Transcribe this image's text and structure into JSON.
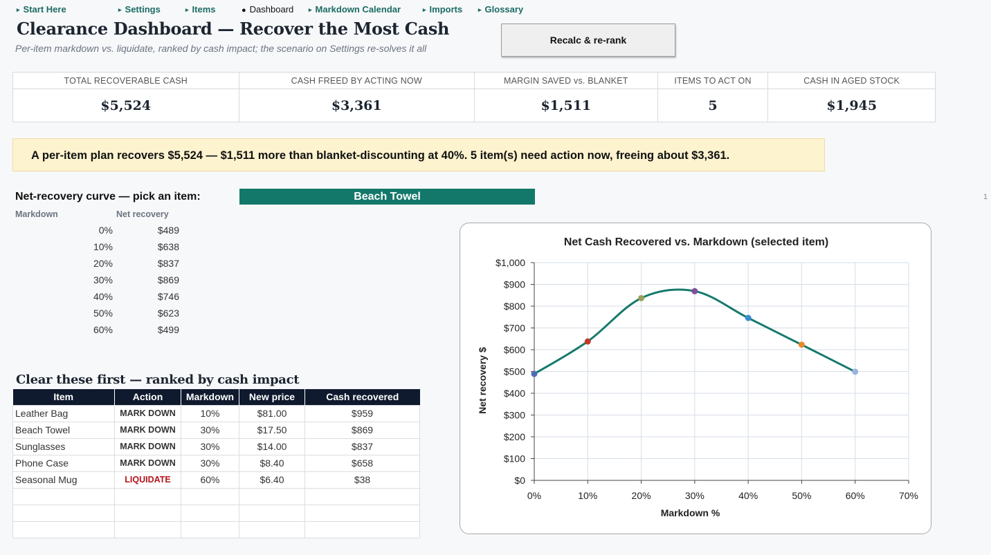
{
  "nav": [
    {
      "label": "Start Here",
      "active": false
    },
    {
      "label": "Settings",
      "active": false
    },
    {
      "label": "Items",
      "active": false
    },
    {
      "label": "Dashboard",
      "active": true
    },
    {
      "label": "Markdown Calendar",
      "active": false
    },
    {
      "label": "Imports",
      "active": false
    },
    {
      "label": "Glossary",
      "active": false
    }
  ],
  "header": {
    "title": "Clearance Dashboard — Recover the Most Cash",
    "subtitle": "Per-item markdown vs. liquidate, ranked by cash impact; the scenario on Settings re-solves it all",
    "recalc_label": "Recalc & re-rank"
  },
  "kpis": [
    {
      "label": "TOTAL RECOVERABLE CASH",
      "value": "$5,524"
    },
    {
      "label": "CASH FREED BY ACTING NOW",
      "value": "$3,361"
    },
    {
      "label": "MARGIN SAVED vs. BLANKET",
      "value": "$1,511"
    },
    {
      "label": "ITEMS TO ACT ON",
      "value": "5"
    },
    {
      "label": "CASH IN AGED STOCK",
      "value": "$1,945"
    }
  ],
  "banner": "A per-item plan recovers $5,524 — $1,511 more than blanket-discounting at 40%. 5 item(s) need action now, freeing about $3,361.",
  "curve": {
    "label": "Net-recovery curve — pick an item:",
    "selected_item": "Beach Towel",
    "col_markdown": "Markdown",
    "col_net": "Net recovery",
    "rows": [
      {
        "markdown": "0%",
        "net": "$489"
      },
      {
        "markdown": "10%",
        "net": "$638"
      },
      {
        "markdown": "20%",
        "net": "$837"
      },
      {
        "markdown": "30%",
        "net": "$869"
      },
      {
        "markdown": "40%",
        "net": "$746"
      },
      {
        "markdown": "50%",
        "net": "$623"
      },
      {
        "markdown": "60%",
        "net": "$499"
      }
    ]
  },
  "page_number": "1",
  "ranking": {
    "title": "Clear these first — ranked by cash impact",
    "headers": [
      "Item",
      "Action",
      "Markdown",
      "New price",
      "Cash recovered"
    ],
    "rows": [
      {
        "item": "Leather Bag",
        "action": "MARK DOWN",
        "markdown": "10%",
        "price": "$81.00",
        "cash": "$959"
      },
      {
        "item": "Beach Towel",
        "action": "MARK DOWN",
        "markdown": "30%",
        "price": "$17.50",
        "cash": "$869"
      },
      {
        "item": "Sunglasses",
        "action": "MARK DOWN",
        "markdown": "30%",
        "price": "$14.00",
        "cash": "$837"
      },
      {
        "item": "Phone Case",
        "action": "MARK DOWN",
        "markdown": "30%",
        "price": "$8.40",
        "cash": "$658"
      },
      {
        "item": "Seasonal Mug",
        "action": "LIQUIDATE",
        "markdown": "60%",
        "price": "$6.40",
        "cash": "$38"
      }
    ],
    "empty_rows": 3
  },
  "colors": {
    "accent": "#13786a",
    "header_dark": "#0f1a2e",
    "banner_bg": "#fdf3cf",
    "action_markdown": "#8b3c17",
    "action_liquidate": "#b3141c",
    "point_colors": [
      "#4a6fb5",
      "#c0392b",
      "#9aa05a",
      "#7e4e9c",
      "#3a8ccf",
      "#e8892b",
      "#9bb3e0"
    ]
  },
  "chart_data": {
    "type": "line",
    "title": "Net Cash Recovered vs. Markdown (selected item)",
    "xlabel": "Markdown %",
    "ylabel": "Net recovery $",
    "x": [
      0,
      10,
      20,
      30,
      40,
      50,
      60
    ],
    "series": [
      {
        "values": [
          489,
          638,
          837,
          869,
          746,
          623,
          499
        ]
      }
    ],
    "xlim": [
      0,
      70
    ],
    "ylim": [
      0,
      1000
    ],
    "x_ticks": [
      "0%",
      "10%",
      "20%",
      "30%",
      "40%",
      "50%",
      "60%",
      "70%"
    ],
    "y_ticks": [
      "$0",
      "$100",
      "$200",
      "$300",
      "$400",
      "$500",
      "$600",
      "$700",
      "$800",
      "$900",
      "$1,000"
    ],
    "grid": true,
    "line_color": "#167a6c",
    "smooth": true
  }
}
